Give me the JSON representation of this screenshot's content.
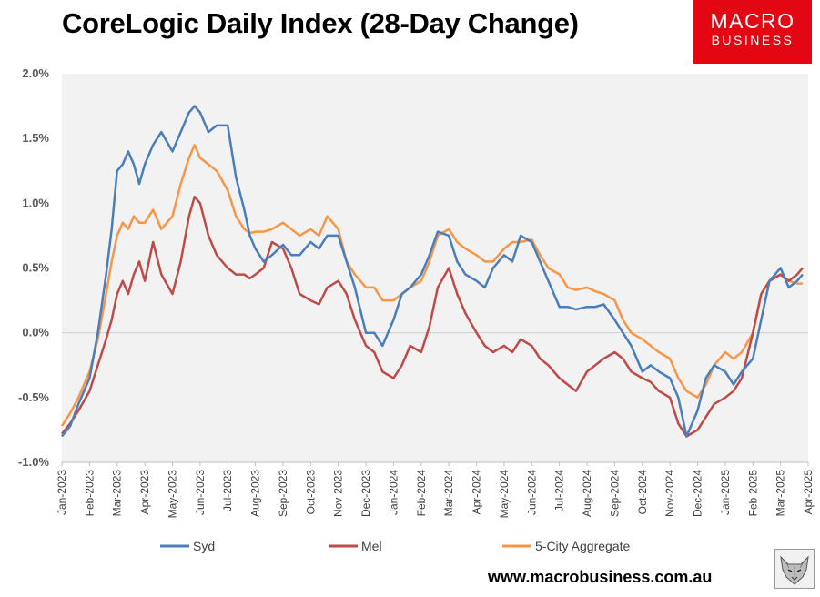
{
  "header": {
    "title": "CoreLogic Daily Index (28-Day Change)",
    "logo_line1": "MACRO",
    "logo_line2": "BUSINESS"
  },
  "footer": {
    "url": "www.macrobusiness.com.au"
  },
  "colors": {
    "syd": "#4a7ebb",
    "mel": "#be4b48",
    "agg": "#f79646",
    "plot_bg": "#f2f2f2",
    "logo_bg": "#e30613"
  },
  "chart_data": {
    "type": "line",
    "title": "CoreLogic Daily Index (28-Day Change)",
    "ylim": [
      -1.0,
      2.0
    ],
    "yticks": [
      -1.0,
      -0.5,
      0.0,
      0.5,
      1.0,
      1.5,
      2.0
    ],
    "ytick_labels": [
      "-1.0%",
      "-0.5%",
      "0.0%",
      "0.5%",
      "1.0%",
      "1.5%",
      "2.0%"
    ],
    "xlim": [
      0,
      27
    ],
    "xticks": [
      0,
      1,
      2,
      3,
      4,
      5,
      6,
      7,
      8,
      9,
      10,
      11,
      12,
      13,
      14,
      15,
      16,
      17,
      18,
      19,
      20,
      21,
      22,
      23,
      24,
      25,
      26,
      27
    ],
    "xtick_labels": [
      "Jan-2023",
      "Feb-2023",
      "Mar-2023",
      "Apr-2023",
      "May-2023",
      "Jun-2023",
      "Jul-2023",
      "Aug-2023",
      "Sep-2023",
      "Oct-2023",
      "Nov-2023",
      "Dec-2023",
      "Jan-2024",
      "Feb-2024",
      "Mar-2024",
      "Apr-2024",
      "May-2024",
      "Jun-2024",
      "Jul-2024",
      "Aug-2024",
      "Sep-2024",
      "Oct-2024",
      "Nov-2024",
      "Dec-2024",
      "Jan-2025",
      "Feb-2025",
      "Mar-2025",
      "Apr-2025"
    ],
    "grid": "horizontal",
    "legend_position": "bottom",
    "series": [
      {
        "name": "Syd",
        "x": [
          0,
          0.3,
          0.6,
          1,
          1.3,
          1.6,
          1.8,
          2,
          2.2,
          2.4,
          2.6,
          2.8,
          3,
          3.3,
          3.6,
          4,
          4.3,
          4.6,
          4.8,
          5,
          5.3,
          5.6,
          6,
          6.3,
          6.6,
          6.8,
          7,
          7.3,
          7.6,
          8,
          8.3,
          8.6,
          9,
          9.3,
          9.6,
          10,
          10.3,
          10.6,
          11,
          11.3,
          11.6,
          12,
          12.3,
          12.6,
          13,
          13.3,
          13.6,
          14,
          14.3,
          14.6,
          15,
          15.3,
          15.6,
          16,
          16.3,
          16.6,
          17,
          17.3,
          17.6,
          18,
          18.3,
          18.6,
          19,
          19.3,
          19.6,
          20,
          20.3,
          20.6,
          21,
          21.3,
          21.6,
          22,
          22.3,
          22.6,
          23,
          23.3,
          23.6,
          24,
          24.3,
          24.6,
          25,
          25.3,
          25.6,
          26,
          26.3,
          26.6,
          26.8
        ],
        "values": [
          -0.8,
          -0.72,
          -0.55,
          -0.35,
          0,
          0.45,
          0.8,
          1.25,
          1.3,
          1.4,
          1.3,
          1.15,
          1.3,
          1.45,
          1.55,
          1.4,
          1.55,
          1.7,
          1.75,
          1.7,
          1.55,
          1.6,
          1.6,
          1.2,
          0.95,
          0.75,
          0.65,
          0.55,
          0.6,
          0.68,
          0.6,
          0.6,
          0.7,
          0.65,
          0.75,
          0.75,
          0.55,
          0.35,
          0,
          0.0,
          -0.1,
          0.1,
          0.3,
          0.35,
          0.45,
          0.6,
          0.78,
          0.75,
          0.55,
          0.45,
          0.4,
          0.35,
          0.5,
          0.6,
          0.55,
          0.75,
          0.7,
          0.55,
          0.4,
          0.2,
          0.2,
          0.18,
          0.2,
          0.2,
          0.22,
          0.1,
          0,
          -0.1,
          -0.3,
          -0.25,
          -0.3,
          -0.35,
          -0.5,
          -0.8,
          -0.6,
          -0.35,
          -0.25,
          -0.3,
          -0.4,
          -0.3,
          -0.2,
          0.1,
          0.4,
          0.5,
          0.35,
          0.4,
          0.45
        ]
      },
      {
        "name": "Mel",
        "x": [
          0,
          0.3,
          0.6,
          1,
          1.3,
          1.6,
          1.8,
          2,
          2.2,
          2.4,
          2.6,
          2.8,
          3,
          3.3,
          3.6,
          4,
          4.3,
          4.6,
          4.8,
          5,
          5.3,
          5.6,
          6,
          6.3,
          6.6,
          6.8,
          7,
          7.3,
          7.6,
          8,
          8.3,
          8.6,
          9,
          9.3,
          9.6,
          10,
          10.3,
          10.6,
          11,
          11.3,
          11.6,
          12,
          12.3,
          12.6,
          13,
          13.3,
          13.6,
          14,
          14.3,
          14.6,
          15,
          15.3,
          15.6,
          16,
          16.3,
          16.6,
          17,
          17.3,
          17.6,
          18,
          18.3,
          18.6,
          19,
          19.3,
          19.6,
          20,
          20.3,
          20.6,
          21,
          21.3,
          21.6,
          22,
          22.3,
          22.6,
          23,
          23.3,
          23.6,
          24,
          24.3,
          24.6,
          25,
          25.3,
          25.6,
          26,
          26.3,
          26.6,
          26.8
        ],
        "values": [
          -0.78,
          -0.7,
          -0.6,
          -0.45,
          -0.25,
          -0.05,
          0.1,
          0.3,
          0.4,
          0.3,
          0.45,
          0.55,
          0.4,
          0.7,
          0.45,
          0.3,
          0.55,
          0.9,
          1.05,
          1.0,
          0.75,
          0.6,
          0.5,
          0.45,
          0.45,
          0.42,
          0.45,
          0.5,
          0.7,
          0.65,
          0.5,
          0.3,
          0.25,
          0.22,
          0.35,
          0.4,
          0.3,
          0.1,
          -0.1,
          -0.15,
          -0.3,
          -0.35,
          -0.25,
          -0.1,
          -0.15,
          0.05,
          0.35,
          0.5,
          0.3,
          0.15,
          0.0,
          -0.1,
          -0.15,
          -0.1,
          -0.15,
          -0.05,
          -0.1,
          -0.2,
          -0.25,
          -0.35,
          -0.4,
          -0.45,
          -0.3,
          -0.25,
          -0.2,
          -0.15,
          -0.2,
          -0.3,
          -0.35,
          -0.38,
          -0.45,
          -0.5,
          -0.7,
          -0.8,
          -0.75,
          -0.65,
          -0.55,
          -0.5,
          -0.45,
          -0.35,
          0,
          0.3,
          0.4,
          0.45,
          0.4,
          0.45,
          0.5
        ]
      },
      {
        "name": "5-City Aggregate",
        "x": [
          0,
          0.3,
          0.6,
          1,
          1.3,
          1.6,
          1.8,
          2,
          2.2,
          2.4,
          2.6,
          2.8,
          3,
          3.3,
          3.6,
          4,
          4.3,
          4.6,
          4.8,
          5,
          5.3,
          5.6,
          6,
          6.3,
          6.6,
          6.8,
          7,
          7.3,
          7.6,
          8,
          8.3,
          8.6,
          9,
          9.3,
          9.6,
          10,
          10.3,
          10.6,
          11,
          11.3,
          11.6,
          12,
          12.3,
          12.6,
          13,
          13.3,
          13.6,
          14,
          14.3,
          14.6,
          15,
          15.3,
          15.6,
          16,
          16.3,
          16.6,
          17,
          17.3,
          17.6,
          18,
          18.3,
          18.6,
          19,
          19.3,
          19.6,
          20,
          20.3,
          20.6,
          21,
          21.3,
          21.6,
          22,
          22.3,
          22.6,
          23,
          23.3,
          23.6,
          24,
          24.3,
          24.6,
          25,
          25.3,
          25.6,
          26,
          26.3,
          26.6,
          26.8
        ],
        "values": [
          -0.72,
          -0.62,
          -0.5,
          -0.3,
          -0.05,
          0.3,
          0.55,
          0.75,
          0.85,
          0.8,
          0.9,
          0.85,
          0.85,
          0.95,
          0.8,
          0.9,
          1.15,
          1.35,
          1.45,
          1.35,
          1.3,
          1.25,
          1.1,
          0.9,
          0.8,
          0.77,
          0.78,
          0.78,
          0.8,
          0.85,
          0.8,
          0.75,
          0.8,
          0.75,
          0.9,
          0.8,
          0.55,
          0.45,
          0.35,
          0.35,
          0.25,
          0.25,
          0.3,
          0.35,
          0.4,
          0.55,
          0.75,
          0.8,
          0.7,
          0.65,
          0.6,
          0.55,
          0.55,
          0.65,
          0.7,
          0.7,
          0.72,
          0.6,
          0.5,
          0.45,
          0.35,
          0.33,
          0.35,
          0.32,
          0.3,
          0.25,
          0.1,
          0.0,
          -0.05,
          -0.1,
          -0.15,
          -0.2,
          -0.35,
          -0.45,
          -0.5,
          -0.4,
          -0.25,
          -0.15,
          -0.2,
          -0.15,
          0,
          0.3,
          0.4,
          0.45,
          0.4,
          0.38,
          0.38
        ]
      }
    ]
  }
}
